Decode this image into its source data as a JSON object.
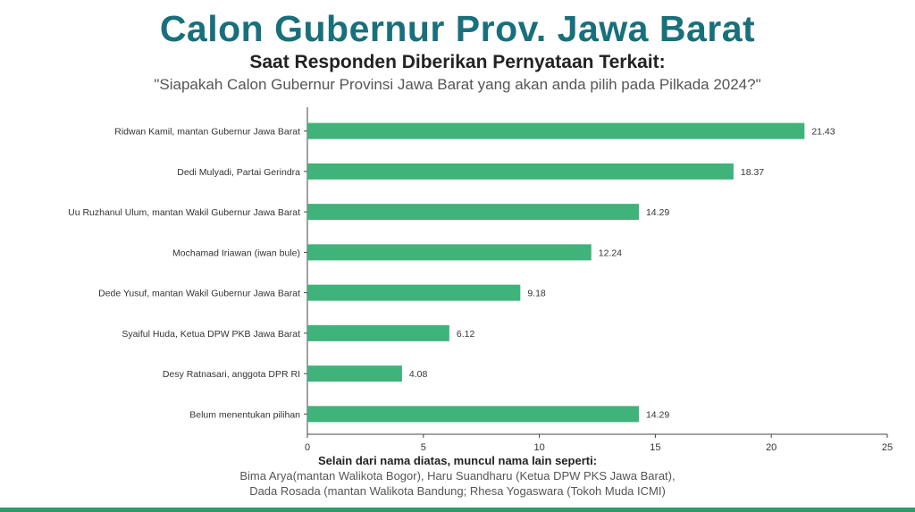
{
  "header": {
    "title": "Calon Gubernur Prov. Jawa Barat",
    "subtitle": "Saat Responden Diberikan Pernyataan Terkait:",
    "question": "\"Siapakah Calon Gubernur Provinsi Jawa Barat yang akan anda pilih pada Pilkada 2024?\""
  },
  "colors": {
    "title": "#17707c",
    "bar": "#3fb37a",
    "axis": "#444444",
    "strip": "#2e9a6a"
  },
  "chart_data": {
    "type": "bar",
    "orientation": "horizontal",
    "categories": [
      "Ridwan Kamil, mantan Gubernur Jawa Barat",
      "Dedi Mulyadi, Partai Gerindra",
      "Uu Ruzhanul Ulum, mantan Wakil Gubernur Jawa Barat",
      "Mochamad Iriawan (iwan bule)",
      "Dede Yusuf, mantan Wakil Gubernur Jawa Barat",
      "Syaiful Huda, Ketua DPW PKB Jawa Barat",
      "Desy Ratnasari, anggota DPR RI",
      "Belum menentukan pilihan"
    ],
    "values": [
      21.43,
      18.37,
      14.29,
      12.24,
      9.18,
      6.12,
      4.08,
      14.29
    ],
    "value_labels": [
      "21.43",
      "18.37",
      "14.29",
      "12.24",
      "9.18",
      "6.12",
      "4.08",
      "14.29"
    ],
    "xlim": [
      0,
      25
    ],
    "xticks": [
      0,
      5,
      10,
      15,
      20,
      25
    ],
    "grid": false,
    "legend": "none"
  },
  "footnote": {
    "heading": "Selain dari nama diatas, muncul nama lain seperti:",
    "line1": "Bima Arya(mantan Walikota Bogor), Haru Suandharu (Ketua DPW PKS Jawa Barat),",
    "line2": "Dada Rosada (mantan Walikota Bandung; Rhesa Yogaswara (Tokoh Muda ICMI)"
  }
}
